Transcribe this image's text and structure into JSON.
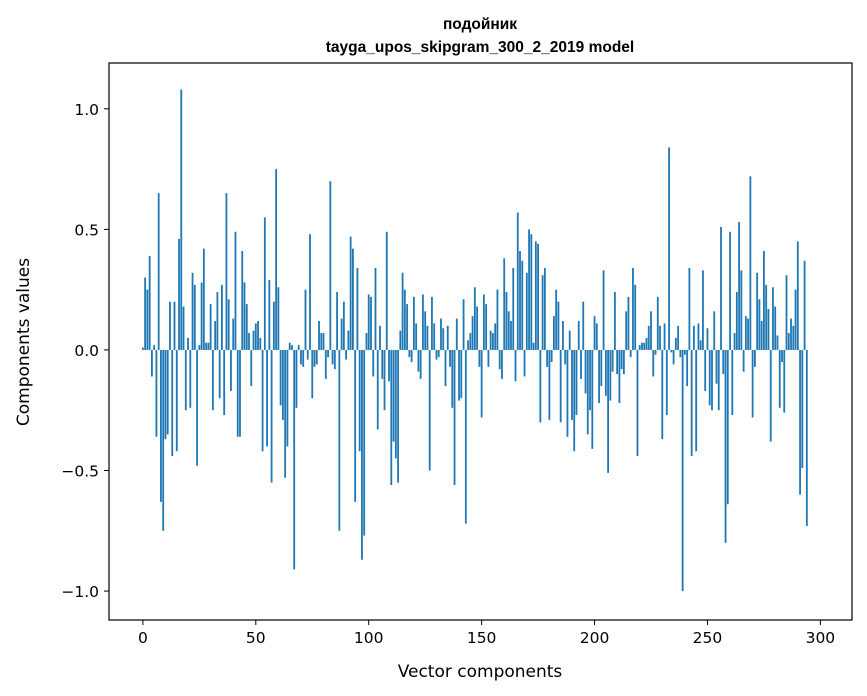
{
  "chart_data": {
    "type": "bar",
    "title": "подойник",
    "subtitle": "tayga_upos_skipgram_300_2_2019 model",
    "xlabel": "Vector components",
    "ylabel": "Components values",
    "xlim": [
      -15,
      314
    ],
    "ylim": [
      -1.12,
      1.19
    ],
    "xticks": [
      0,
      50,
      100,
      150,
      200,
      250,
      300
    ],
    "yticks": [
      -1.0,
      -0.5,
      0.0,
      0.5,
      1.0
    ],
    "ytick_labels": [
      "−1.0",
      "−0.5",
      "0.0",
      "0.5",
      "1.0"
    ],
    "bar_color": "#1f77b4",
    "values": [
      0.01,
      0.3,
      0.25,
      0.39,
      -0.11,
      0.02,
      -0.36,
      0.65,
      -0.63,
      -0.75,
      -0.37,
      -0.35,
      0.2,
      -0.44,
      0.2,
      -0.42,
      0.46,
      1.08,
      0.18,
      -0.25,
      0.05,
      -0.24,
      0.32,
      0.27,
      -0.48,
      0.02,
      0.28,
      0.42,
      0.03,
      0.03,
      0.19,
      -0.25,
      0.12,
      0.24,
      -0.2,
      0.27,
      -0.27,
      0.65,
      0.21,
      -0.17,
      0.13,
      0.49,
      -0.36,
      -0.36,
      0.41,
      0.28,
      0.19,
      0.07,
      -0.15,
      0.08,
      0.11,
      0.12,
      0.05,
      -0.42,
      0.55,
      -0.4,
      0.29,
      -0.55,
      0.2,
      0.75,
      0.26,
      -0.23,
      -0.29,
      -0.53,
      -0.4,
      0.03,
      0.02,
      -0.91,
      -0.24,
      0.02,
      -0.06,
      -0.07,
      0.25,
      -0.04,
      0.48,
      -0.2,
      -0.07,
      -0.06,
      0.12,
      0.07,
      0.07,
      -0.12,
      -0.03,
      0.7,
      -0.06,
      -0.08,
      0.24,
      -0.75,
      0.13,
      0.2,
      -0.04,
      0.08,
      0.47,
      0.42,
      -0.63,
      0.34,
      -0.42,
      -0.87,
      -0.77,
      0.07,
      0.23,
      0.22,
      -0.11,
      0.34,
      -0.33,
      0.1,
      -0.12,
      -0.25,
      0.49,
      -0.13,
      -0.56,
      -0.38,
      -0.45,
      -0.55,
      0.08,
      0.32,
      0.25,
      0.19,
      -0.03,
      -0.05,
      0.22,
      0.11,
      -0.09,
      -0.12,
      0.23,
      0.16,
      0.1,
      -0.5,
      0.22,
      0.11,
      -0.04,
      -0.03,
      0.13,
      0.09,
      -0.15,
      0.1,
      -0.07,
      -0.24,
      -0.56,
      0.13,
      -0.21,
      -0.2,
      0.21,
      -0.72,
      0.04,
      0.07,
      0.14,
      0.26,
      0.18,
      -0.07,
      -0.28,
      0.23,
      0.19,
      -0.07,
      0.08,
      0.07,
      0.11,
      0.25,
      -0.08,
      -0.12,
      0.38,
      0.24,
      0.16,
      0.12,
      0.34,
      -0.13,
      0.57,
      0.41,
      0.37,
      -0.11,
      0.32,
      0.5,
      0.48,
      0.03,
      0.45,
      0.44,
      -0.3,
      0.31,
      0.34,
      -0.07,
      -0.29,
      -0.05,
      0.14,
      0.25,
      0.2,
      -0.3,
      0.12,
      -0.06,
      -0.36,
      0.08,
      -0.29,
      -0.42,
      -0.27,
      0.12,
      -0.12,
      0.2,
      -0.18,
      -0.35,
      -0.25,
      -0.41,
      0.14,
      0.11,
      -0.22,
      -0.15,
      0.33,
      -0.19,
      -0.51,
      -0.21,
      -0.09,
      0.24,
      -0.1,
      -0.22,
      -0.08,
      -0.1,
      0.16,
      0.22,
      -0.03,
      0.34,
      0.27,
      -0.44,
      0.02,
      0.03,
      0.03,
      0.05,
      0.1,
      0.16,
      -0.11,
      -0.02,
      0.22,
      0.1,
      -0.37,
      0.11,
      -0.27,
      0.84,
      -0.01,
      -0.06,
      0.05,
      0.1,
      -0.03,
      -1.0,
      -0.02,
      -0.15,
      0.34,
      -0.44,
      0.1,
      -0.42,
      0.11,
      0.04,
      0.33,
      -0.17,
      0.09,
      -0.23,
      -0.25,
      0.16,
      -0.14,
      -0.25,
      0.51,
      -0.1,
      -0.8,
      -0.64,
      0.49,
      -0.27,
      0.07,
      0.24,
      0.53,
      0.33,
      -0.09,
      0.14,
      0.13,
      0.72,
      -0.28,
      -0.07,
      0.32,
      0.21,
      0.12,
      0.41,
      0.27,
      0.17,
      -0.38,
      0.26,
      0.18,
      0.06,
      -0.24,
      -0.05,
      -0.26,
      0.31,
      0.07,
      0.13,
      0.1,
      0.25,
      0.45,
      -0.6,
      -0.49,
      0.37,
      -0.73
    ]
  }
}
